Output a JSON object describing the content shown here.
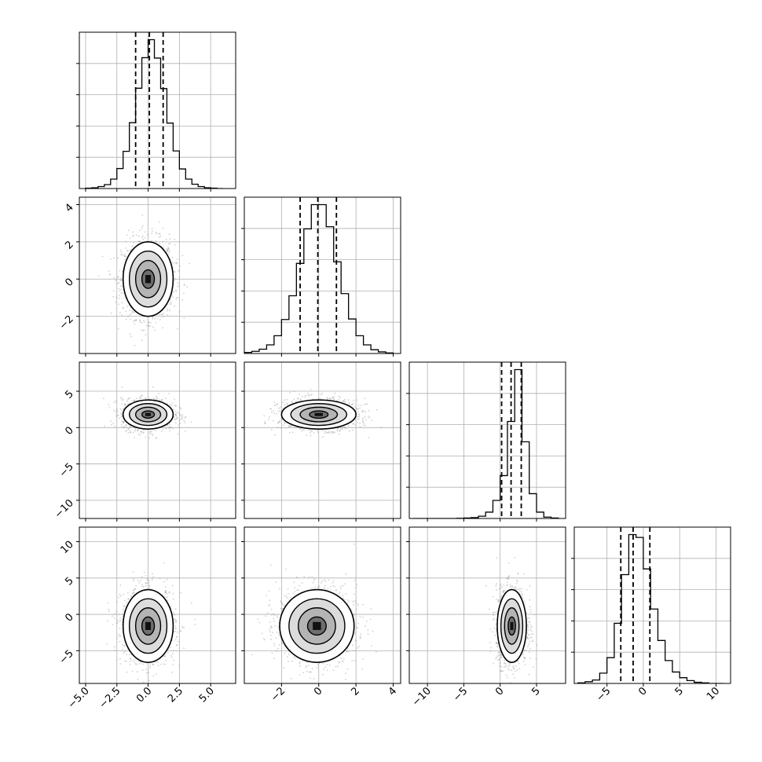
{
  "chart_data": {
    "type": "corner",
    "title": "",
    "parameters": [
      {
        "range": [
          -5.5,
          7.0
        ],
        "ticks": [
          -5.0,
          -2.5,
          0.0,
          2.5,
          5.0
        ],
        "tick_labels": [
          "−5.0",
          "−2.5",
          "0.0",
          "2.5",
          "5.0"
        ],
        "quantiles": [
          -1.0,
          0.1,
          1.2
        ],
        "hist_bins": [
          -5.0,
          -4.5,
          -4.0,
          -3.5,
          -3.0,
          -2.5,
          -2.0,
          -1.5,
          -1.0,
          -0.5,
          0.0,
          0.5,
          1.0,
          1.5,
          2.0,
          2.5,
          3.0,
          3.5,
          4.0,
          4.5,
          5.0,
          5.5,
          6.0
        ],
        "hist_values": [
          1,
          2,
          5,
          10,
          24,
          51,
          95,
          168,
          256,
          334,
          380,
          333,
          255,
          167,
          96,
          50,
          24,
          11,
          5,
          2,
          1,
          0
        ]
      },
      {
        "range": [
          -4.0,
          4.4
        ],
        "ticks": [
          -2,
          0,
          2,
          4
        ],
        "tick_labels": [
          "−2",
          "0",
          "2",
          "4"
        ],
        "quantiles": [
          -1.0,
          -0.05,
          0.95
        ],
        "hist_bins": [
          -4.0,
          -3.6,
          -3.2,
          -2.8,
          -2.4,
          -2.0,
          -1.6,
          -1.2,
          -0.8,
          -0.4,
          0.0,
          0.4,
          0.8,
          1.2,
          1.6,
          2.0,
          2.4,
          2.8,
          3.2,
          3.6,
          4.0
        ],
        "hist_values": [
          2,
          4,
          8,
          16,
          33,
          63,
          107,
          167,
          231,
          276,
          276,
          235,
          170,
          111,
          64,
          33,
          16,
          7,
          3,
          1
        ]
      },
      {
        "range": [
          -12.5,
          9.0
        ],
        "ticks": [
          -10,
          -5,
          0,
          5
        ],
        "tick_labels": [
          "−10",
          "−5",
          "0",
          "5"
        ],
        "quantiles": [
          0.2,
          1.5,
          2.9
        ],
        "hist_bins": [
          -12.0,
          -11.0,
          -10.0,
          -9.0,
          -8.0,
          -7.0,
          -6.0,
          -5.0,
          -4.0,
          -3.0,
          -2.0,
          -1.0,
          0.0,
          1.0,
          2.0,
          3.0,
          4.0,
          5.0,
          6.0,
          7.0,
          8.0
        ],
        "hist_values": [
          0,
          0,
          0,
          0,
          0,
          0,
          1,
          2,
          4,
          10,
          28,
          80,
          190,
          430,
          660,
          340,
          110,
          28,
          6,
          2
        ]
      },
      {
        "range": [
          -9.5,
          12.0
        ],
        "ticks": [
          -5,
          0,
          5,
          10
        ],
        "tick_labels": [
          "−5",
          "0",
          "5",
          "10"
        ],
        "quantiles": [
          -3.1,
          -1.4,
          0.9
        ],
        "hist_bins": [
          -9.0,
          -8.0,
          -7.0,
          -6.0,
          -5.0,
          -4.0,
          -3.0,
          -2.0,
          -1.0,
          0.0,
          1.0,
          2.0,
          3.0,
          4.0,
          5.0,
          6.0,
          7.0,
          8.0,
          9.0,
          10.0,
          11.0
        ],
        "hist_values": [
          1,
          3,
          6,
          18,
          45,
          105,
          190,
          260,
          255,
          200,
          130,
          75,
          40,
          20,
          10,
          5,
          2,
          1,
          0,
          0
        ]
      }
    ],
    "pairs": [
      {
        "row": 1,
        "col": 0,
        "center": [
          0.0,
          0.0
        ],
        "sigma": [
          1.0,
          1.0
        ],
        "contour_sigmas": [
          0.5,
          1.0,
          1.5,
          2.0
        ]
      },
      {
        "row": 2,
        "col": 0,
        "center": [
          0.0,
          1.8
        ],
        "sigma": [
          1.0,
          1.0
        ],
        "contour_sigmas": [
          0.5,
          1.0,
          1.5,
          2.0
        ]
      },
      {
        "row": 2,
        "col": 1,
        "center": [
          0.0,
          1.8
        ],
        "sigma": [
          1.0,
          1.0
        ],
        "contour_sigmas": [
          0.5,
          1.0,
          1.5,
          2.0
        ]
      },
      {
        "row": 3,
        "col": 0,
        "center": [
          0.0,
          -1.6
        ],
        "sigma": [
          1.0,
          2.5
        ],
        "contour_sigmas": [
          0.5,
          1.0,
          1.5,
          2.0
        ]
      },
      {
        "row": 3,
        "col": 1,
        "center": [
          -0.1,
          -1.6
        ],
        "sigma": [
          1.0,
          2.5
        ],
        "contour_sigmas": [
          0.5,
          1.0,
          1.5,
          2.0
        ]
      },
      {
        "row": 3,
        "col": 2,
        "center": [
          1.6,
          -1.6
        ],
        "sigma": [
          1.0,
          2.5
        ],
        "contour_sigmas": [
          0.5,
          1.0,
          1.5,
          2.0
        ]
      }
    ],
    "grid": true,
    "colors": {
      "line": "#000000",
      "grid": "#b0b0b0",
      "points": "#9a9a9a"
    }
  }
}
